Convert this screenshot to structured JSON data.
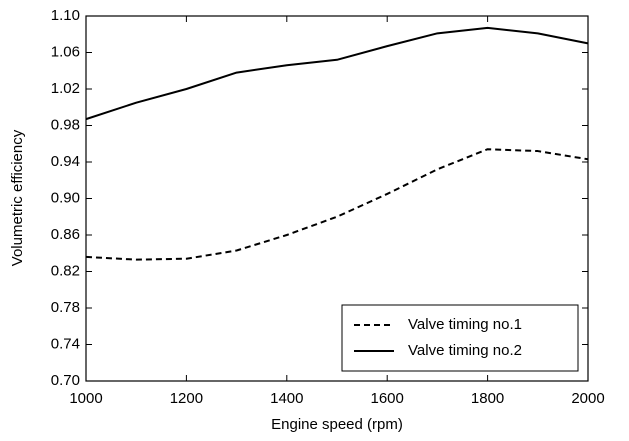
{
  "chart_data": {
    "type": "line",
    "xlabel": "Engine speed (rpm)",
    "ylabel": "Volumetric efficiency",
    "x": [
      1000,
      1100,
      1200,
      1300,
      1400,
      1500,
      1600,
      1700,
      1800,
      1900,
      2000
    ],
    "series": [
      {
        "name": "Valve timing no.1",
        "color": "#000000",
        "dash": true,
        "values": [
          0.836,
          0.833,
          0.834,
          0.843,
          0.86,
          0.88,
          0.905,
          0.932,
          0.954,
          0.952,
          0.943
        ]
      },
      {
        "name": "Valve timing no.2",
        "color": "#000000",
        "dash": false,
        "values": [
          0.987,
          1.005,
          1.02,
          1.038,
          1.046,
          1.052,
          1.067,
          1.081,
          1.087,
          1.081,
          1.07
        ]
      }
    ],
    "xlim": [
      1000,
      2000
    ],
    "xticks": [
      1000,
      1200,
      1400,
      1600,
      1800,
      2000
    ],
    "ylim": [
      0.7,
      1.1
    ],
    "yticks": [
      {
        "value": 0.7,
        "label": "0.70"
      },
      0.74,
      0.78,
      0.82,
      0.86,
      {
        "value": 0.9,
        "label": "0.90"
      },
      0.94,
      0.98,
      1.02,
      1.06,
      {
        "value": 1.1,
        "label": "1.10"
      }
    ],
    "grid": false,
    "legend": "lower right"
  }
}
